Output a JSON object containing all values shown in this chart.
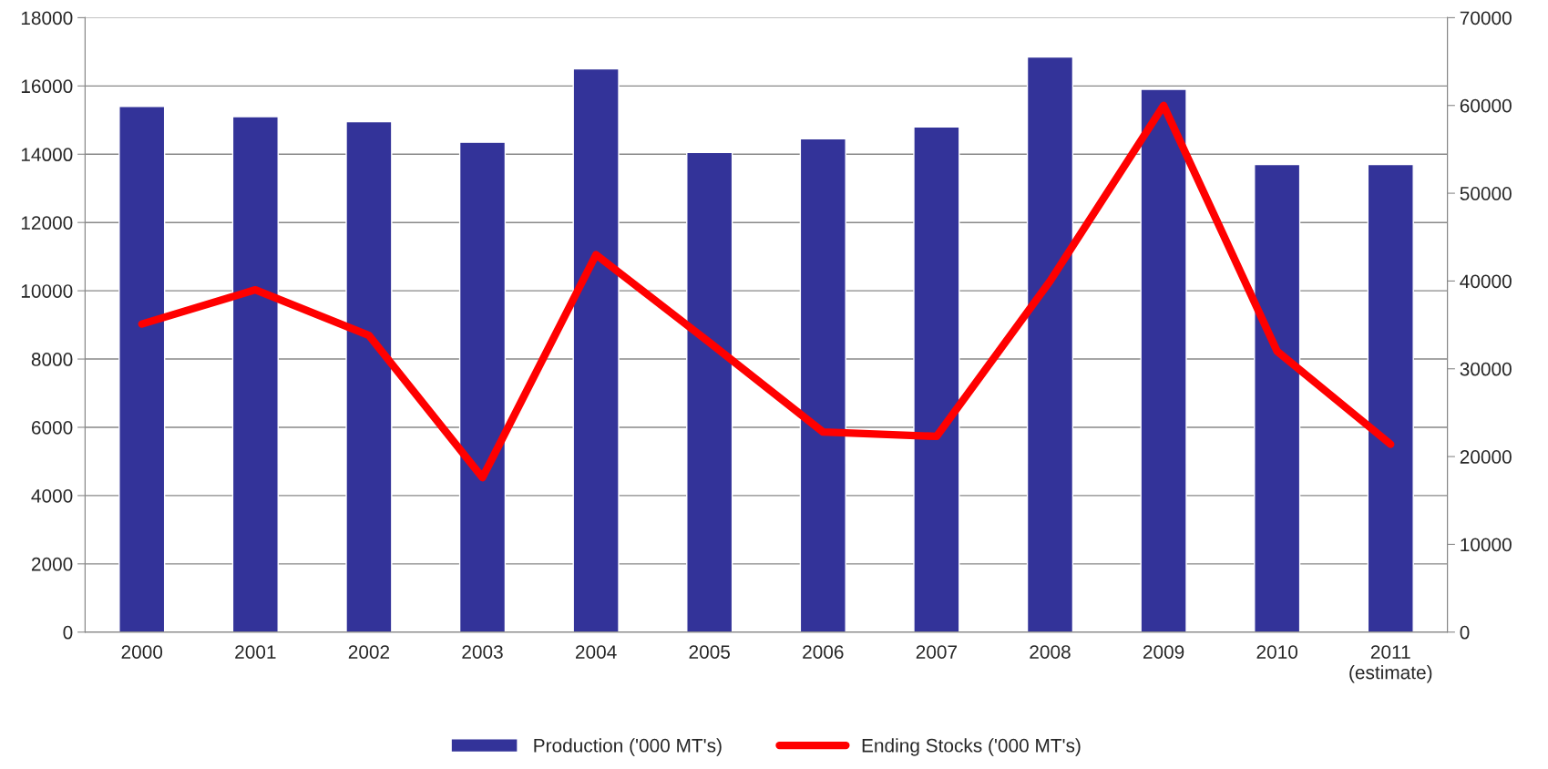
{
  "chart_data": {
    "type": "bar",
    "categories": [
      "2000",
      "2001",
      "2002",
      "2003",
      "2004",
      "2005",
      "2006",
      "2007",
      "2008",
      "2009",
      "2010",
      "2011\n(estimate)"
    ],
    "series": [
      {
        "name": "Production ('000 MT's)",
        "color": "#333399",
        "values": [
          15400,
          15100,
          14950,
          14350,
          16500,
          14050,
          14450,
          14800,
          16850,
          15900,
          13700,
          13700
        ]
      },
      {
        "name": "Ending Stocks ('000 MT's)",
        "type": "line",
        "axis": "y2",
        "color": "#ff0000",
        "values": [
          35100,
          39000,
          33800,
          17600,
          43000,
          33000,
          22800,
          22300,
          40000,
          60000,
          32000,
          21400
        ]
      }
    ],
    "ylim": [
      0,
      18000
    ],
    "yticks": [
      0,
      2000,
      4000,
      6000,
      8000,
      10000,
      12000,
      14000,
      16000,
      18000
    ],
    "y2lim": [
      0,
      70000
    ],
    "y2ticks": [
      0,
      10000,
      20000,
      30000,
      40000,
      50000,
      60000,
      70000
    ],
    "grid": "y",
    "legend": "bottom",
    "marker": "none",
    "line_style": "solid"
  }
}
